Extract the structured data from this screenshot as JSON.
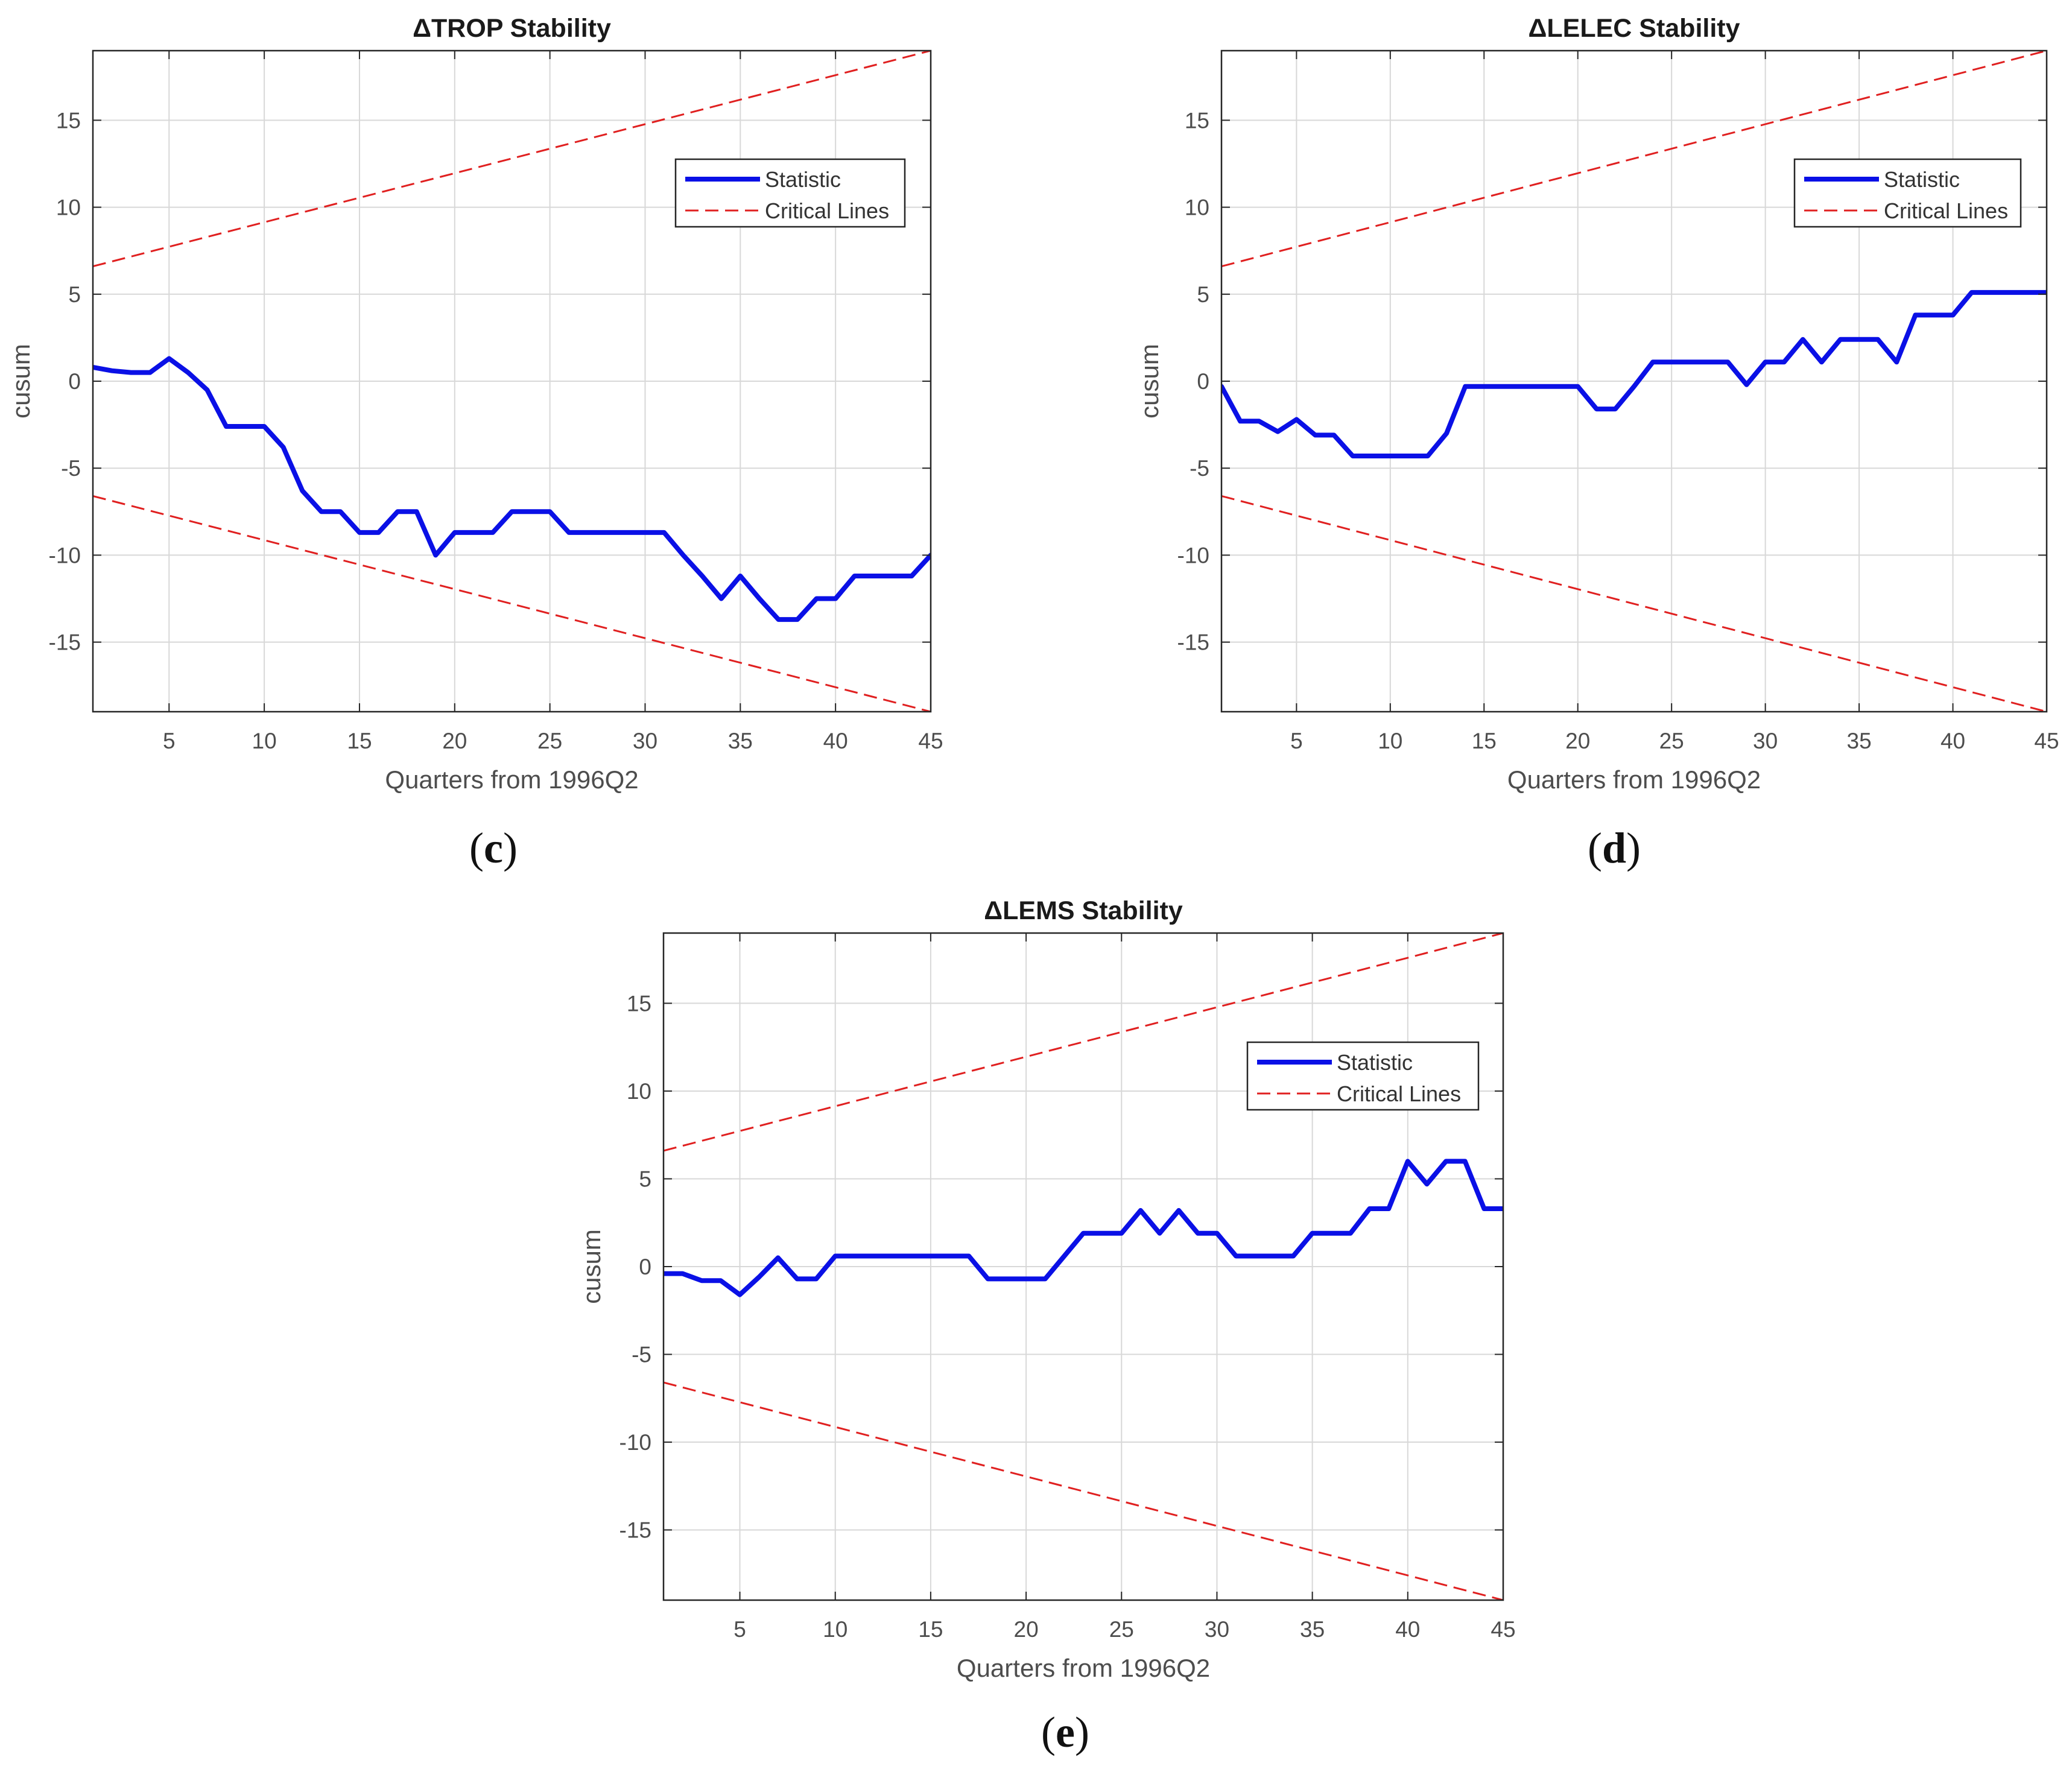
{
  "colors": {
    "statistic": "#0a10e6",
    "critical": "#e02020",
    "grid": "#d8d8d8",
    "axis": "#262626",
    "text": "#4d4d4d"
  },
  "chart_data": [
    {
      "type": "line",
      "panel_label": "(c)",
      "title": "ΔTROP Stability",
      "xlabel": "Quarters from 1996Q2",
      "ylabel": "cusum",
      "xlim": [
        1,
        45
      ],
      "ylim": [
        -19,
        19
      ],
      "xticks": [
        5,
        10,
        15,
        20,
        25,
        30,
        35,
        40,
        45
      ],
      "yticks": [
        -15,
        -10,
        -5,
        0,
        5,
        10,
        15
      ],
      "grid": true,
      "legend": {
        "position": "top-right",
        "entries": [
          "Statistic",
          "Critical Lines"
        ]
      },
      "series": [
        {
          "name": "Statistic",
          "style": "solid",
          "x": [
            1,
            2,
            3,
            4,
            5,
            6,
            7,
            8,
            9,
            10,
            11,
            12,
            13,
            14,
            15,
            16,
            17,
            18,
            19,
            20,
            21,
            22,
            23,
            24,
            25,
            26,
            27,
            28,
            29,
            30,
            31,
            32,
            33,
            34,
            35,
            36,
            37,
            38,
            39,
            40,
            41,
            42,
            43,
            44,
            45
          ],
          "y": [
            0.8,
            0.6,
            0.5,
            0.5,
            1.3,
            0.5,
            -0.5,
            -2.6,
            -2.6,
            -2.6,
            -3.8,
            -6.3,
            -7.5,
            -7.5,
            -8.7,
            -8.7,
            -7.5,
            -7.5,
            -10.0,
            -8.7,
            -8.7,
            -8.7,
            -7.5,
            -7.5,
            -7.5,
            -8.7,
            -8.7,
            -8.7,
            -8.7,
            -8.7,
            -8.7,
            -10.0,
            -11.2,
            -12.5,
            -11.2,
            -12.5,
            -13.7,
            -13.7,
            -12.5,
            -12.5,
            -11.2,
            -11.2,
            -11.2,
            -11.2,
            -10.0
          ]
        },
        {
          "name": "Critical Lines",
          "style": "dashed",
          "x": [
            1,
            45
          ],
          "y": [
            6.6,
            19.0
          ]
        },
        {
          "name": "Critical Lines",
          "style": "dashed",
          "x": [
            1,
            45
          ],
          "y": [
            -6.6,
            -19.0
          ]
        }
      ]
    },
    {
      "type": "line",
      "panel_label": "(d)",
      "title": "ΔLELEC Stability",
      "xlabel": "Quarters from 1996Q2",
      "ylabel": "cusum",
      "xlim": [
        1,
        45
      ],
      "ylim": [
        -19,
        19
      ],
      "xticks": [
        5,
        10,
        15,
        20,
        25,
        30,
        35,
        40,
        45
      ],
      "yticks": [
        -15,
        -10,
        -5,
        0,
        5,
        10,
        15
      ],
      "grid": true,
      "legend": {
        "position": "top-right",
        "entries": [
          "Statistic",
          "Critical Lines"
        ]
      },
      "series": [
        {
          "name": "Statistic",
          "style": "solid",
          "x": [
            1,
            2,
            3,
            4,
            5,
            6,
            7,
            8,
            9,
            10,
            11,
            12,
            13,
            14,
            15,
            16,
            17,
            18,
            19,
            20,
            21,
            22,
            23,
            24,
            25,
            26,
            27,
            28,
            29,
            30,
            31,
            32,
            33,
            34,
            35,
            36,
            37,
            38,
            39,
            40,
            41,
            42,
            43,
            44,
            45
          ],
          "y": [
            -0.3,
            -2.3,
            -2.3,
            -2.9,
            -2.2,
            -3.1,
            -3.1,
            -4.3,
            -4.3,
            -4.3,
            -4.3,
            -4.3,
            -3.0,
            -0.3,
            -0.3,
            -0.3,
            -0.3,
            -0.3,
            -0.3,
            -0.3,
            -1.6,
            -1.6,
            -0.3,
            1.1,
            1.1,
            1.1,
            1.1,
            1.1,
            -0.2,
            1.1,
            1.1,
            2.4,
            1.1,
            2.4,
            2.4,
            2.4,
            1.1,
            3.8,
            3.8,
            3.8,
            5.1,
            5.1,
            5.1,
            5.1,
            5.1
          ]
        },
        {
          "name": "Critical Lines",
          "style": "dashed",
          "x": [
            1,
            45
          ],
          "y": [
            6.6,
            19.0
          ]
        },
        {
          "name": "Critical Lines",
          "style": "dashed",
          "x": [
            1,
            45
          ],
          "y": [
            -6.6,
            -19.0
          ]
        }
      ]
    },
    {
      "type": "line",
      "panel_label": "(e)",
      "title": "ΔLEMS Stability",
      "xlabel": "Quarters from 1996Q2",
      "ylabel": "cusum",
      "xlim": [
        1,
        45
      ],
      "ylim": [
        -19,
        19
      ],
      "xticks": [
        5,
        10,
        15,
        20,
        25,
        30,
        35,
        40,
        45
      ],
      "yticks": [
        -15,
        -10,
        -5,
        0,
        5,
        10,
        15
      ],
      "grid": true,
      "legend": {
        "position": "top-right",
        "entries": [
          "Statistic",
          "Critical Lines"
        ]
      },
      "series": [
        {
          "name": "Statistic",
          "style": "solid",
          "x": [
            1,
            2,
            3,
            4,
            5,
            6,
            7,
            8,
            9,
            10,
            11,
            12,
            13,
            14,
            15,
            16,
            17,
            18,
            19,
            20,
            21,
            22,
            23,
            24,
            25,
            26,
            27,
            28,
            29,
            30,
            31,
            32,
            33,
            34,
            35,
            36,
            37,
            38,
            39,
            40,
            41,
            42,
            43,
            44,
            45
          ],
          "y": [
            -0.4,
            -0.4,
            -0.8,
            -0.8,
            -1.6,
            -0.6,
            0.5,
            -0.7,
            -0.7,
            0.6,
            0.6,
            0.6,
            0.6,
            0.6,
            0.6,
            0.6,
            0.6,
            -0.7,
            -0.7,
            -0.7,
            -0.7,
            0.6,
            1.9,
            1.9,
            1.9,
            3.2,
            1.9,
            3.2,
            1.9,
            1.9,
            0.6,
            0.6,
            0.6,
            0.6,
            1.9,
            1.9,
            1.9,
            3.3,
            3.3,
            6.0,
            4.7,
            6.0,
            6.0,
            3.3,
            3.3
          ]
        },
        {
          "name": "Critical Lines",
          "style": "dashed",
          "x": [
            1,
            45
          ],
          "y": [
            6.6,
            19.0
          ]
        },
        {
          "name": "Critical Lines",
          "style": "dashed",
          "x": [
            1,
            45
          ],
          "y": [
            -6.6,
            -19.0
          ]
        }
      ]
    }
  ]
}
